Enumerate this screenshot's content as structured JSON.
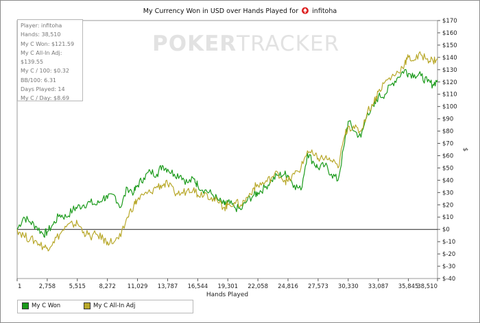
{
  "title_prefix": "My Currency Won in USD over Hands Played for",
  "player_name": "infitoha",
  "watermark": {
    "part1": "POKER",
    "part2": "TRACKER"
  },
  "stats": [
    "Player: infitoha",
    "Hands: 38,510",
    "My C Won: $121.59",
    "My C All-In Adj: $139.55",
    "My C / 100: $0.32",
    "BB/100: 6.31",
    "Days Played: 14",
    "My C / Day: $8.69"
  ],
  "legend": [
    {
      "label": "My C Won",
      "color": "#1a9a1a"
    },
    {
      "label": "My C All-In Adj",
      "color": "#b8a82a"
    }
  ],
  "chart_data": {
    "type": "line",
    "title": "My Currency Won in USD over Hands Played for infitoha",
    "xlabel": "Hands Played",
    "ylabel": "$",
    "xlim": [
      1,
      38510
    ],
    "ylim": [
      -40,
      170
    ],
    "x_ticks": [
      "1",
      "2,758",
      "5,515",
      "8,272",
      "11,029",
      "13,787",
      "16,544",
      "19,301",
      "22,058",
      "24,816",
      "27,573",
      "30,330",
      "33,087",
      "35,845",
      "38,510"
    ],
    "y_ticks": [
      "$170",
      "$160",
      "$150",
      "$140",
      "$130",
      "$120",
      "$110",
      "$100",
      "$90",
      "$80",
      "$70",
      "$60",
      "$50",
      "$40",
      "$30",
      "$20",
      "$10",
      "$0",
      "$-10",
      "$-20",
      "$-30",
      "$-40"
    ],
    "grid": false,
    "legend_position": "bottom-left",
    "series": [
      {
        "name": "My C Won",
        "color": "#1a9a1a",
        "x": [
          1,
          600,
          1200,
          1800,
          2400,
          2758,
          3300,
          3900,
          4500,
          5100,
          5515,
          6100,
          6700,
          7300,
          7900,
          8272,
          8900,
          9500,
          10100,
          10700,
          11029,
          11600,
          12200,
          12800,
          13300,
          13787,
          14400,
          15000,
          15600,
          16200,
          16544,
          17200,
          17800,
          18400,
          19000,
          19301,
          19900,
          20500,
          21100,
          21700,
          22058,
          22700,
          23300,
          23900,
          24500,
          24816,
          25400,
          26000,
          26600,
          27200,
          27573,
          28200,
          28800,
          29400,
          30000,
          30330,
          30900,
          31500,
          32100,
          32700,
          33087,
          33700,
          34300,
          34900,
          35500,
          35845,
          36400,
          37000,
          37600,
          38100,
          38510
        ],
        "values": [
          0,
          10,
          6,
          2,
          -4,
          -2,
          4,
          12,
          10,
          16,
          18,
          20,
          22,
          20,
          26,
          25,
          28,
          18,
          34,
          30,
          36,
          42,
          47,
          45,
          52,
          49,
          45,
          44,
          38,
          41,
          36,
          32,
          29,
          24,
          20,
          22,
          18,
          16,
          24,
          28,
          30,
          34,
          40,
          44,
          45,
          44,
          36,
          32,
          62,
          54,
          50,
          52,
          45,
          40,
          70,
          88,
          80,
          75,
          95,
          100,
          108,
          110,
          118,
          124,
          130,
          127,
          126,
          125,
          120,
          118,
          121.59
        ]
      },
      {
        "name": "My C All-In Adj",
        "color": "#b8a82a",
        "x": [
          1,
          600,
          1200,
          1800,
          2400,
          2758,
          3300,
          3900,
          4500,
          5100,
          5515,
          6100,
          6700,
          7300,
          7900,
          8272,
          8900,
          9500,
          10100,
          10700,
          11029,
          11600,
          12200,
          12800,
          13300,
          13787,
          14400,
          15000,
          15600,
          16200,
          16544,
          17200,
          17800,
          18400,
          19000,
          19301,
          19900,
          20500,
          21100,
          21700,
          22058,
          22700,
          23300,
          23900,
          24500,
          24816,
          25400,
          26000,
          26600,
          27200,
          27573,
          28200,
          28800,
          29400,
          30000,
          30330,
          30900,
          31500,
          32100,
          32700,
          33087,
          33700,
          34300,
          34900,
          35500,
          35845,
          36400,
          37000,
          37600,
          38100,
          38510
        ],
        "values": [
          0,
          -5,
          -8,
          -10,
          -14,
          -15,
          -10,
          -4,
          2,
          4,
          5,
          -2,
          -6,
          -4,
          -8,
          -10,
          -10,
          -6,
          10,
          20,
          24,
          28,
          30,
          35,
          36,
          37,
          30,
          29,
          32,
          34,
          28,
          30,
          26,
          22,
          18,
          20,
          22,
          20,
          26,
          34,
          36,
          38,
          42,
          46,
          40,
          39,
          45,
          50,
          64,
          60,
          58,
          58,
          56,
          50,
          76,
          84,
          82,
          80,
          96,
          104,
          112,
          120,
          124,
          128,
          135,
          140,
          138,
          142,
          139,
          137,
          139.55
        ]
      }
    ]
  }
}
